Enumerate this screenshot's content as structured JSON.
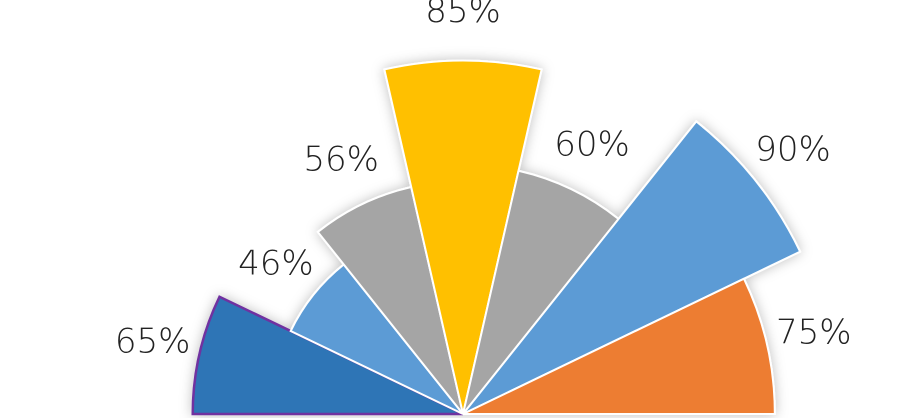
{
  "chart_data": {
    "type": "polar-area",
    "values": [
      65,
      46,
      56,
      85,
      60,
      90,
      75
    ],
    "value_labels": [
      "65%",
      "46%",
      "56%",
      "85%",
      "60%",
      "90%",
      "75%"
    ],
    "colors": [
      "#2e75b6",
      "#5b9bd5",
      "#a5a5a5",
      "#ffc000",
      "#a5a5a5",
      "#5b9bd5",
      "#ed7d31"
    ],
    "rlim": [
      0,
      95
    ],
    "outline": {
      "index": 0,
      "color": "#7030a0"
    }
  }
}
